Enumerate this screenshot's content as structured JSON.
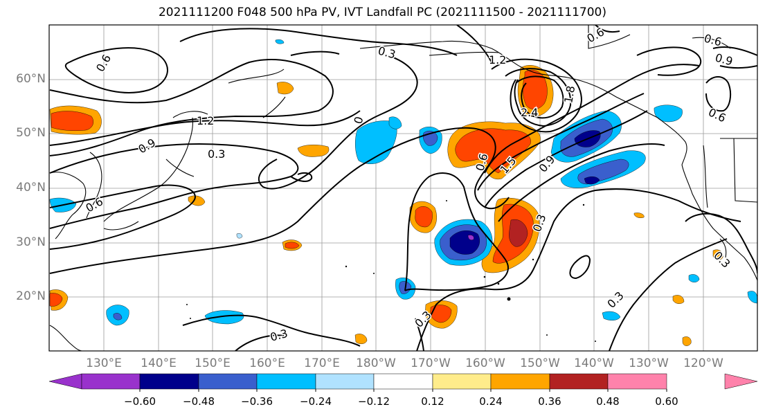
{
  "title": "2021111200 F048 500 hPa PV, IVT Landfall PC (2021111500 - 2021111700)",
  "lat_labels": [
    "60°N",
    "50°N",
    "40°N",
    "30°N",
    "20°N"
  ],
  "lon_labels": [
    "130°E",
    "140°E",
    "150°E",
    "160°E",
    "170°E",
    "180°W",
    "170°W",
    "160°W",
    "150°W",
    "140°W",
    "130°W",
    "120°W"
  ],
  "contour_labels": [
    "0.6",
    "0.3",
    "1.2",
    "0.6",
    "0.9",
    "1.2",
    "0.9",
    "0.3",
    "0",
    "0.6",
    "0.6",
    "1.5",
    "0.9",
    "2.4",
    "1.8",
    "0.3",
    "0.6",
    "0.3",
    "0.3",
    "0.3",
    "0.3",
    "0.6"
  ],
  "colorbar": {
    "ticks": [
      "−0.60",
      "−0.48",
      "−0.36",
      "−0.24",
      "−0.12",
      "0.12",
      "0.24",
      "0.36",
      "0.48",
      "0.60"
    ],
    "colors": [
      "#9932cc",
      "#00008b",
      "#3a5fcd",
      "#00bfff",
      "#b0e2ff",
      "#ffffff",
      "#ffec8b",
      "#ffa500",
      "#ff4500",
      "#b22222",
      "#ff82ab"
    ]
  }
}
